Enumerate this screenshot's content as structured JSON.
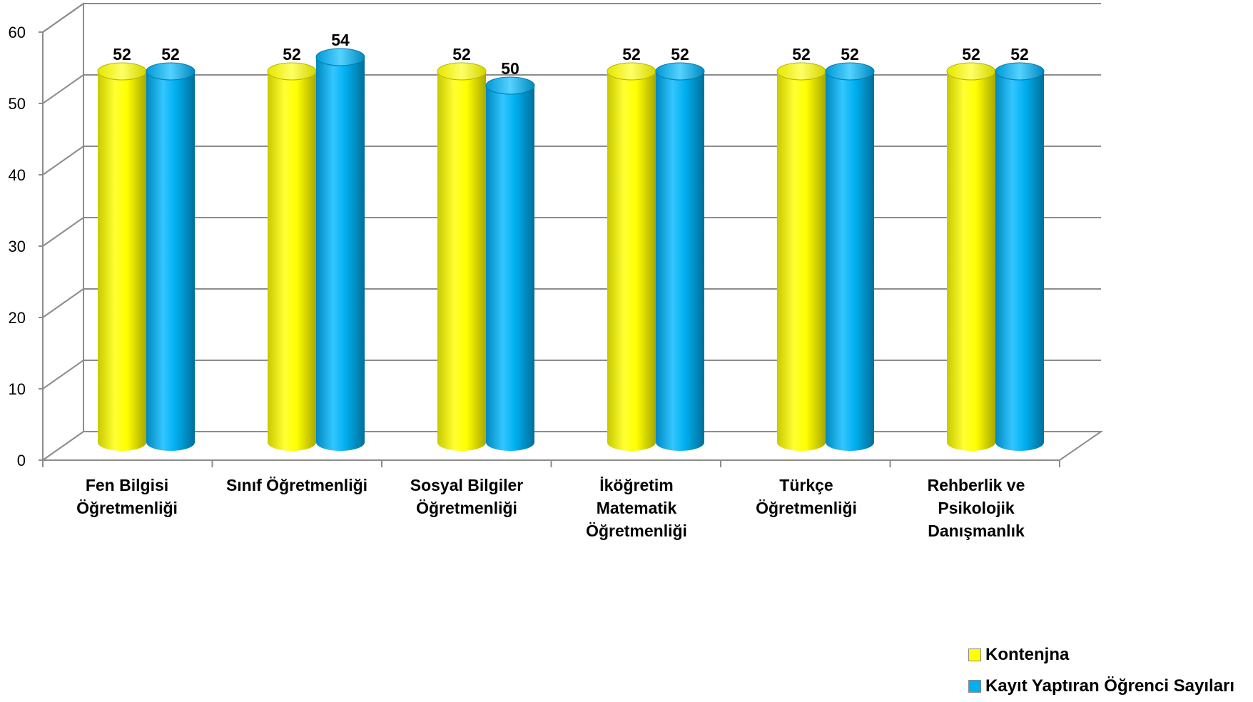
{
  "chart_data": {
    "type": "bar",
    "categories": [
      "Fen Bilgisi Öğretmenliği",
      "Sınıf Öğretmenliği",
      "Sosyal Bilgiler Öğretmenliği",
      "İköğretim Matematik Öğretmenliği",
      "Türkçe Öğretmenliği",
      "Rehberlik ve Psikolojik Danışmanlık"
    ],
    "series": [
      {
        "name": "Kontenjna",
        "color": "#FFFF00",
        "values": [
          52,
          52,
          52,
          52,
          52,
          52
        ]
      },
      {
        "name": "Kayıt Yaptıran Öğrenci Sayıları",
        "color": "#00B0F0",
        "values": [
          52,
          54,
          50,
          52,
          52,
          52
        ]
      }
    ],
    "ylim": [
      0,
      60
    ],
    "yticks": [
      "0",
      "10",
      "20",
      "30",
      "40",
      "50",
      "60"
    ],
    "grid": true,
    "legend_position": "bottom-right",
    "style": "3d-cylinder"
  }
}
